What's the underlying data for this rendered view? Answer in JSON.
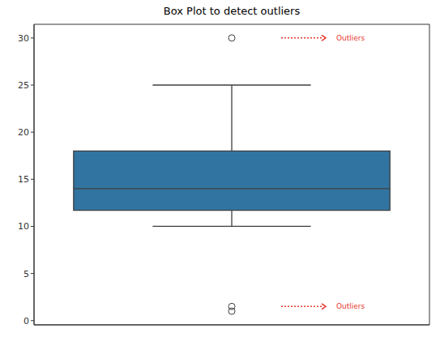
{
  "chart_data": {
    "type": "box",
    "title": "Box Plot to detect outliers",
    "ylim": [
      -0.45,
      31.45
    ],
    "yticks": [
      0,
      5,
      10,
      15,
      20,
      25,
      30
    ],
    "tick_labels": "y",
    "color": "#3274a1",
    "box": {
      "whisker_low": 10,
      "q1": 11.7,
      "median": 14,
      "q3": 18,
      "whisker_high": 25
    },
    "outliers": [
      30,
      1.5,
      1
    ],
    "annotations": [
      {
        "text": "Outliers",
        "y": 30,
        "color": "#e8392f"
      },
      {
        "text": "Outliers",
        "y": 1.5,
        "color": "#e8392f"
      }
    ]
  }
}
